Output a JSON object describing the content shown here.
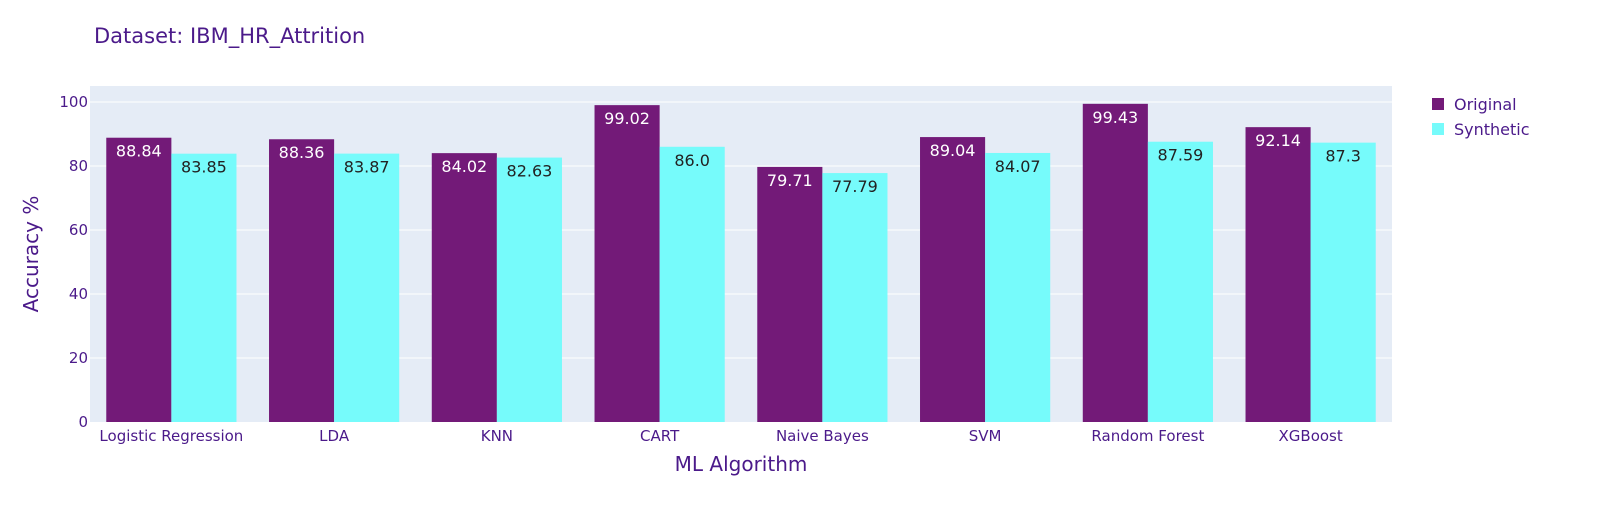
{
  "chart_data": {
    "type": "bar",
    "title": "Dataset: IBM_HR_Attrition",
    "xlabel": "ML Algorithm",
    "ylabel": "Accuracy %",
    "ylim": [
      0,
      105
    ],
    "yticks": [
      0,
      20,
      40,
      60,
      80,
      100
    ],
    "grid": true,
    "legend_position": "top-right",
    "categories": [
      "Logistic Regression",
      "LDA",
      "KNN",
      "CART",
      "Naive Bayes",
      "SVM",
      "Random Forest",
      "XGBoost"
    ],
    "series": [
      {
        "name": "Original",
        "color": "#731a78",
        "values": [
          88.84,
          88.36,
          84.02,
          99.02,
          79.71,
          89.04,
          99.43,
          92.14
        ],
        "labels": [
          "88.84",
          "88.36",
          "84.02",
          "99.02",
          "79.71",
          "89.04",
          "99.43",
          "92.14"
        ]
      },
      {
        "name": "Synthetic",
        "color": "#76fbfb",
        "values": [
          83.85,
          83.87,
          82.63,
          86.0,
          77.79,
          84.07,
          87.59,
          87.3
        ],
        "labels": [
          "83.85",
          "83.87",
          "82.63",
          "86.0",
          "77.79",
          "84.07",
          "87.59",
          "87.3"
        ]
      }
    ],
    "colors": {
      "plot_bg": "#e5ecf6",
      "gridline": "#ffffff",
      "text": "#4b1a8a"
    }
  }
}
